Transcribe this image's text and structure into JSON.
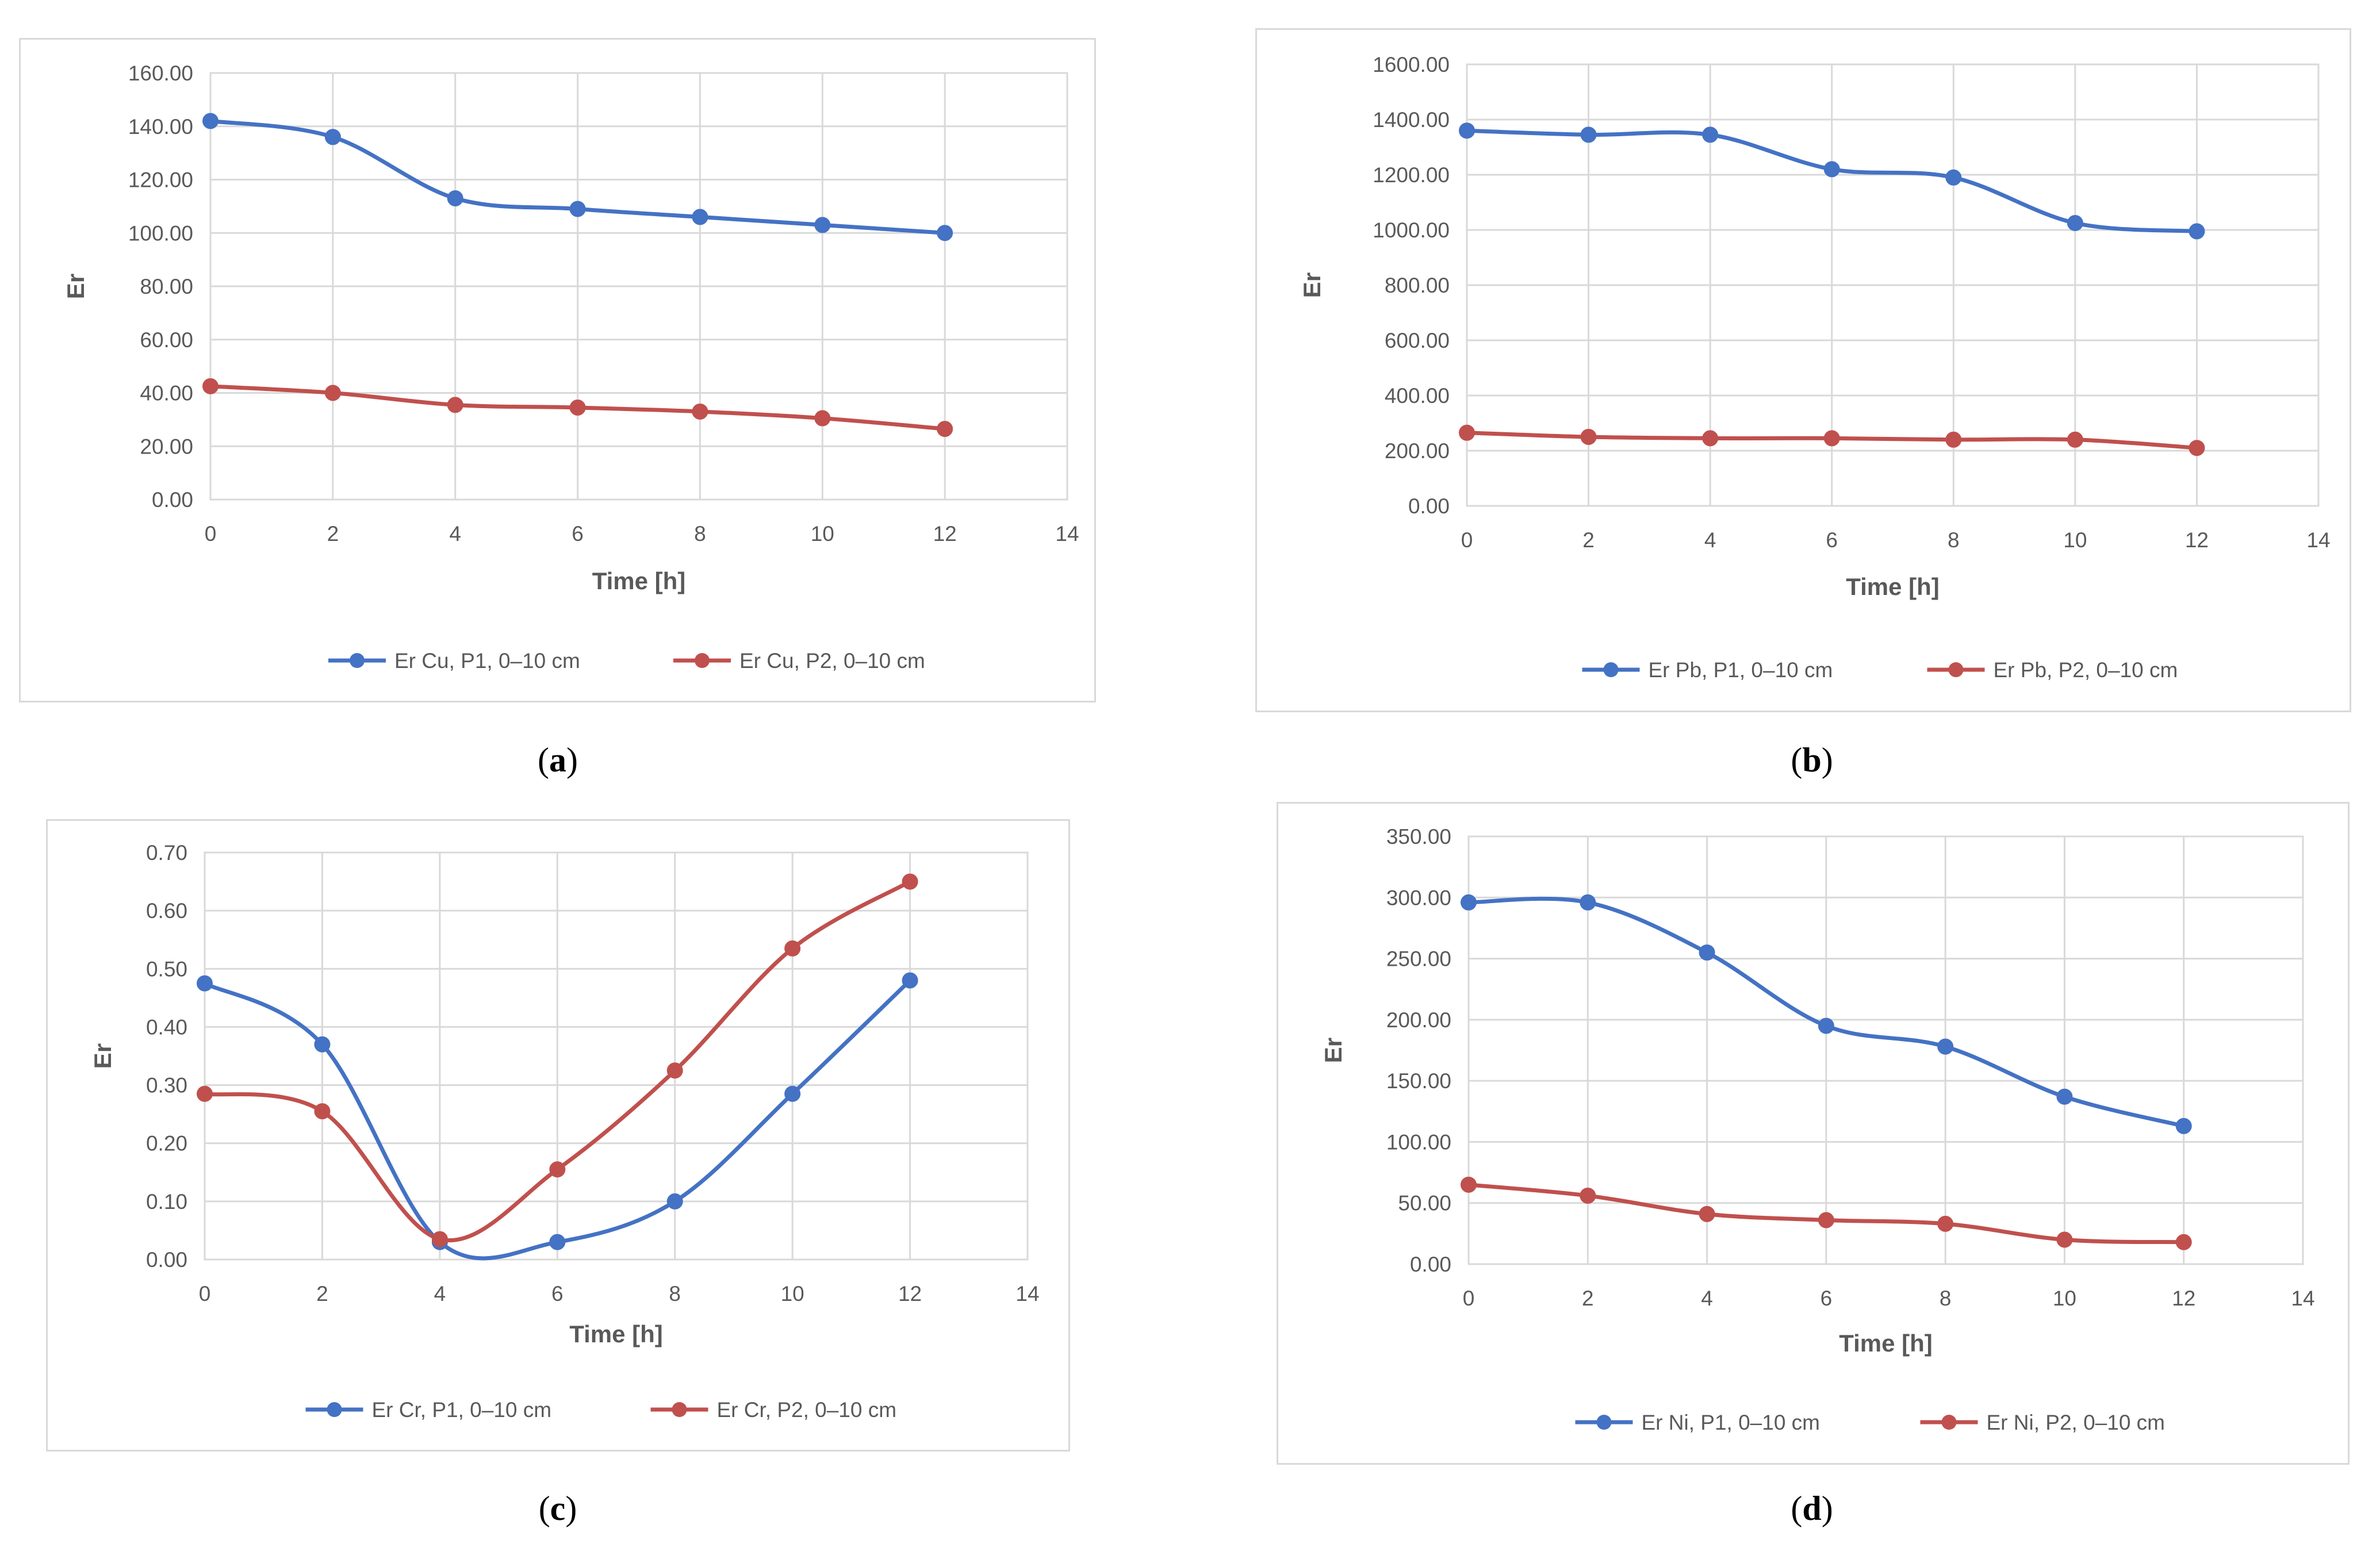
{
  "chart_data": [
    {
      "id": "a",
      "type": "line",
      "caption": "a",
      "title": "",
      "xlabel": "Time [h]",
      "ylabel": "Er",
      "xlim": [
        0,
        14
      ],
      "ylim": [
        0,
        160
      ],
      "x_ticks": [
        0,
        2,
        4,
        6,
        8,
        10,
        12,
        14
      ],
      "y_ticks": [
        0,
        20,
        40,
        60,
        80,
        100,
        120,
        140,
        160
      ],
      "y_decimals": 2,
      "grid": true,
      "legend_position": "bottom",
      "x": [
        0,
        2,
        4,
        6,
        8,
        10,
        12
      ],
      "series": [
        {
          "name": "Er Cu, P1, 0–10 cm",
          "color": "#4472c4",
          "values": [
            142,
            136,
            113,
            109,
            106,
            103,
            100
          ]
        },
        {
          "name": "Er Cu, P2, 0–10 cm",
          "color": "#c0504d",
          "values": [
            42.5,
            40,
            35.5,
            34.5,
            33,
            30.5,
            26.5
          ]
        }
      ]
    },
    {
      "id": "b",
      "type": "line",
      "caption": "b",
      "title": "",
      "xlabel": "Time [h]",
      "ylabel": "Er",
      "xlim": [
        0,
        14
      ],
      "ylim": [
        0,
        1600
      ],
      "x_ticks": [
        0,
        2,
        4,
        6,
        8,
        10,
        12,
        14
      ],
      "y_ticks": [
        0,
        200,
        400,
        600,
        800,
        1000,
        1200,
        1400,
        1600
      ],
      "y_decimals": 2,
      "grid": true,
      "legend_position": "bottom",
      "x": [
        0,
        2,
        4,
        6,
        8,
        10,
        12
      ],
      "series": [
        {
          "name": "Er Pb, P1, 0–10 cm",
          "color": "#4472c4",
          "values": [
            1360,
            1345,
            1345,
            1220,
            1190,
            1025,
            995
          ]
        },
        {
          "name": "Er Pb, P2, 0–10 cm",
          "color": "#c0504d",
          "values": [
            265,
            250,
            245,
            245,
            240,
            240,
            210
          ]
        }
      ]
    },
    {
      "id": "c",
      "type": "line",
      "caption": "c",
      "title": "",
      "xlabel": "Time [h]",
      "ylabel": "Er",
      "xlim": [
        0,
        14
      ],
      "ylim": [
        0,
        0.7
      ],
      "x_ticks": [
        0,
        2,
        4,
        6,
        8,
        10,
        12,
        14
      ],
      "y_ticks": [
        0,
        0.1,
        0.2,
        0.3,
        0.4,
        0.5,
        0.6,
        0.7
      ],
      "y_decimals": 2,
      "grid": true,
      "legend_position": "bottom",
      "x": [
        0,
        2,
        4,
        6,
        8,
        10,
        12
      ],
      "series": [
        {
          "name": "Er Cr, P1, 0–10 cm",
          "color": "#4472c4",
          "values": [
            0.475,
            0.37,
            0.03,
            0.03,
            0.1,
            0.285,
            0.48
          ]
        },
        {
          "name": "Er Cr, P2, 0–10 cm",
          "color": "#c0504d",
          "values": [
            0.285,
            0.255,
            0.035,
            0.155,
            0.325,
            0.535,
            0.65
          ]
        }
      ]
    },
    {
      "id": "d",
      "type": "line",
      "caption": "d",
      "title": "",
      "xlabel": "Time [h]",
      "ylabel": "Er",
      "xlim": [
        0,
        14
      ],
      "ylim": [
        0,
        350
      ],
      "x_ticks": [
        0,
        2,
        4,
        6,
        8,
        10,
        12,
        14
      ],
      "y_ticks": [
        0,
        50,
        100,
        150,
        200,
        250,
        300,
        350
      ],
      "y_decimals": 2,
      "grid": true,
      "legend_position": "bottom",
      "x": [
        0,
        2,
        4,
        6,
        8,
        10,
        12
      ],
      "series": [
        {
          "name": "Er Ni, P1, 0–10 cm",
          "color": "#4472c4",
          "values": [
            296,
            296,
            255,
            195,
            178,
            137,
            113
          ]
        },
        {
          "name": "Er Ni, P2, 0–10 cm",
          "color": "#c0504d",
          "values": [
            65,
            56,
            41,
            36,
            33,
            20,
            18
          ]
        }
      ]
    }
  ],
  "colors": {
    "grid": "#d9d9d9",
    "axis_text": "#595959",
    "border": "#d9d9d9"
  }
}
